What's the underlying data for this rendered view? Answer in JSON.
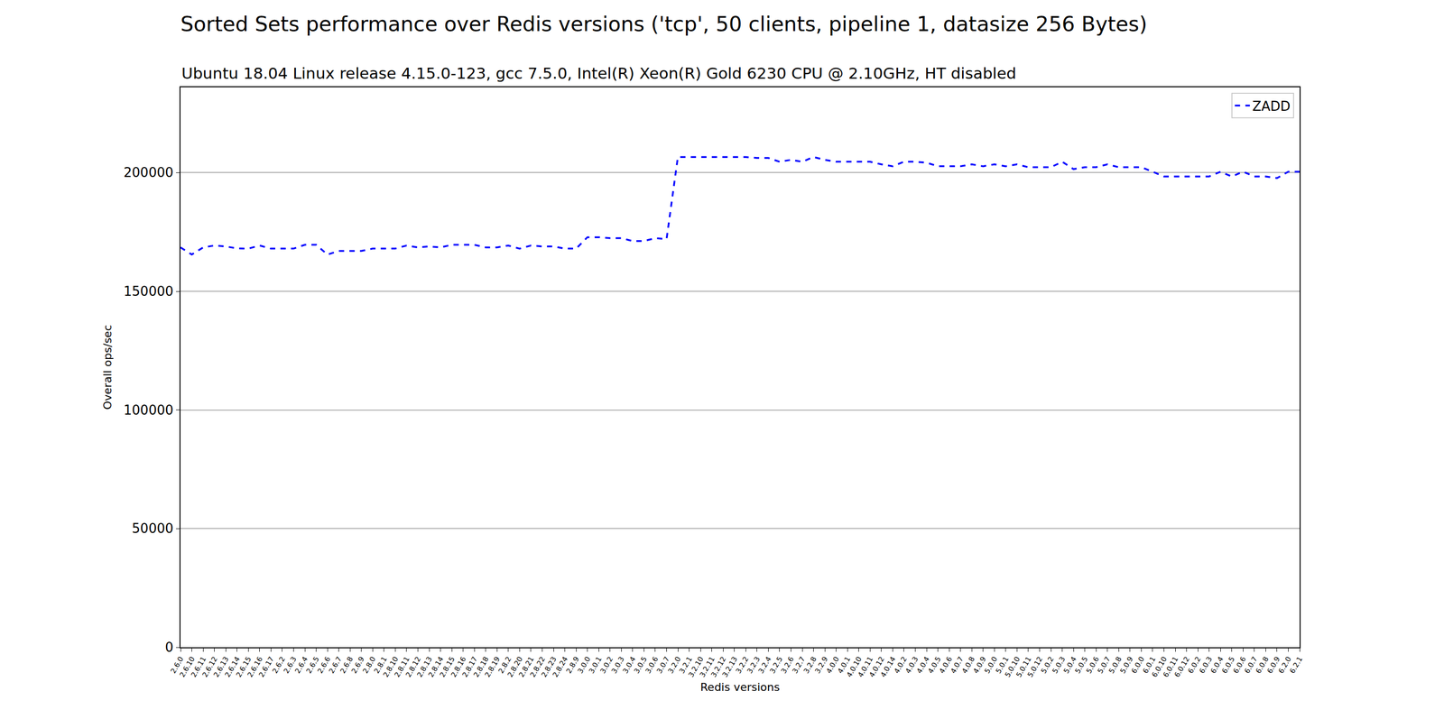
{
  "chart_data": {
    "type": "line",
    "title": "Sorted Sets performance over Redis versions ('tcp', 50 clients, pipeline 1, datasize 256 Bytes)",
    "subtitle": "Ubuntu 18.04 Linux release 4.15.0-123, gcc 7.5.0, Intel(R) Xeon(R) Gold 6230 CPU @ 2.10GHz, HT disabled",
    "x_label": "Redis versions",
    "y_label": "Overall ops/sec",
    "categories": [
      "2.6.0",
      "2.6.10",
      "2.6.11",
      "2.6.12",
      "2.6.13",
      "2.6.14",
      "2.6.15",
      "2.6.16",
      "2.6.17",
      "2.6.2",
      "2.6.3",
      "2.6.4",
      "2.6.5",
      "2.6.6",
      "2.6.7",
      "2.6.8",
      "2.6.9",
      "2.8.0",
      "2.8.1",
      "2.8.10",
      "2.8.11",
      "2.8.12",
      "2.8.13",
      "2.8.14",
      "2.8.15",
      "2.8.16",
      "2.8.17",
      "2.8.18",
      "2.8.19",
      "2.8.2",
      "2.8.20",
      "2.8.21",
      "2.8.22",
      "2.8.23",
      "2.8.24",
      "2.8.9",
      "3.0.0",
      "3.0.1",
      "3.0.2",
      "3.0.3",
      "3.0.4",
      "3.0.5",
      "3.0.6",
      "3.0.7",
      "3.2.0",
      "3.2.1",
      "3.2.10",
      "3.2.11",
      "3.2.12",
      "3.2.13",
      "3.2.2",
      "3.2.3",
      "3.2.4",
      "3.2.5",
      "3.2.6",
      "3.2.7",
      "3.2.8",
      "3.2.9",
      "4.0.0",
      "4.0.1",
      "4.0.10",
      "4.0.11",
      "4.0.12",
      "4.0.14",
      "4.0.2",
      "4.0.3",
      "4.0.4",
      "4.0.5",
      "4.0.6",
      "4.0.7",
      "4.0.8",
      "4.0.9",
      "5.0.0",
      "5.0.1",
      "5.0.10",
      "5.0.11",
      "5.0.12",
      "5.0.2",
      "5.0.3",
      "5.0.4",
      "5.0.5",
      "5.0.6",
      "5.0.7",
      "5.0.8",
      "5.0.9",
      "6.0.0",
      "6.0.1",
      "6.0.10",
      "6.0.11",
      "6.0.12",
      "6.0.2",
      "6.0.3",
      "6.0.4",
      "6.0.5",
      "6.0.6",
      "6.0.7",
      "6.0.8",
      "6.0.9",
      "6.2.0",
      "6.2.1"
    ],
    "series": [
      {
        "name": "ZADD",
        "color": "#0000ff",
        "line_style": "dashed",
        "values": [
          168500,
          165500,
          168500,
          169300,
          168900,
          168100,
          168000,
          169300,
          168000,
          168000,
          168000,
          169600,
          169600,
          165500,
          167000,
          167000,
          167000,
          168000,
          168000,
          168000,
          169300,
          168500,
          168900,
          168500,
          169600,
          169600,
          169600,
          168500,
          168500,
          169300,
          168000,
          169300,
          168900,
          168900,
          168000,
          168000,
          172800,
          172800,
          172400,
          172400,
          171200,
          171200,
          172400,
          172000,
          206600,
          206600,
          206600,
          206600,
          206600,
          206600,
          206600,
          206200,
          206200,
          204600,
          205400,
          204600,
          206600,
          205400,
          204600,
          204600,
          204600,
          204600,
          203500,
          202700,
          204600,
          204600,
          204200,
          202700,
          202700,
          202700,
          203500,
          202700,
          203500,
          202700,
          203500,
          202300,
          202300,
          202300,
          204600,
          201500,
          202300,
          202300,
          203500,
          202300,
          202300,
          202300,
          200400,
          198400,
          198400,
          198400,
          198400,
          198400,
          200400,
          198400,
          200400,
          198400,
          198400,
          197700,
          200400,
          200400
        ]
      }
    ],
    "ylim": [
      0,
      236000
    ],
    "yticks": [
      0,
      50000,
      100000,
      150000,
      200000
    ],
    "grid": true,
    "legend": "upper right"
  }
}
